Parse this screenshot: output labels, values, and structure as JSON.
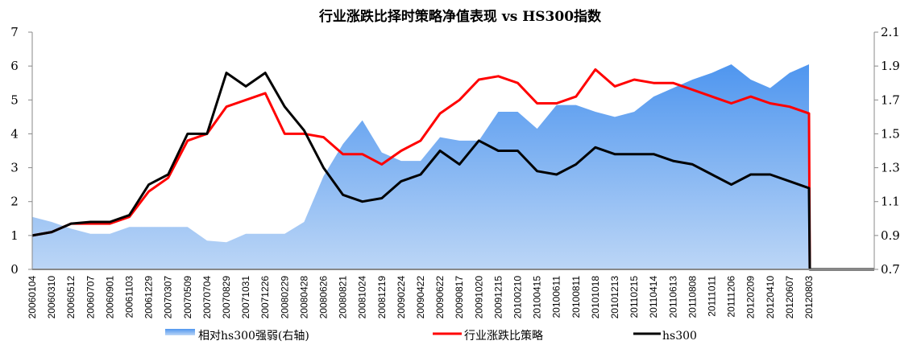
{
  "chart_data": {
    "type": "line",
    "title": "行业涨跌比择时策略净值表现 vs HS300指数",
    "categories": [
      "20060104",
      "20060310",
      "20060512",
      "20060707",
      "20060901",
      "20061103",
      "20061229",
      "20070307",
      "20070509",
      "20070704",
      "20070829",
      "20071031",
      "20071226",
      "20080229",
      "20080428",
      "20080626",
      "20080821",
      "20081024",
      "20081219",
      "20090224",
      "20090422",
      "20090622",
      "20090817",
      "20091020",
      "20091215",
      "20100210",
      "20100415",
      "20100611",
      "20100811",
      "20101018",
      "20101213",
      "20110215",
      "20110414",
      "20110613",
      "20110808",
      "20111011",
      "20111206",
      "20120209",
      "20120410",
      "20120607",
      "20120803"
    ],
    "left_axis": {
      "ylim": [
        0,
        7
      ],
      "ticks": [
        "0",
        "1",
        "2",
        "3",
        "4",
        "5",
        "6",
        "7"
      ]
    },
    "right_axis": {
      "ylim": [
        0.7,
        2.1
      ],
      "ticks": [
        "0.7",
        "0.9",
        "1.1",
        "1.3",
        "1.5",
        "1.7",
        "1.9",
        "2.1"
      ]
    },
    "series": [
      {
        "name": "相对hs300强弱(右轴)",
        "type": "area",
        "axis": "right",
        "color": "#5b9ff0",
        "values": [
          1.01,
          0.98,
          0.94,
          0.91,
          0.91,
          0.95,
          0.95,
          0.95,
          0.95,
          0.87,
          0.86,
          0.91,
          0.91,
          0.91,
          0.98,
          1.25,
          1.44,
          1.58,
          1.39,
          1.34,
          1.34,
          1.48,
          1.46,
          1.46,
          1.63,
          1.63,
          1.53,
          1.67,
          1.67,
          1.63,
          1.6,
          1.63,
          1.72,
          1.77,
          1.82,
          1.86,
          1.91,
          1.82,
          1.77,
          1.86,
          1.91
        ]
      },
      {
        "name": "行业涨跌比策略",
        "type": "line",
        "axis": "left",
        "color": "#ff0000",
        "values": [
          1.0,
          1.1,
          1.35,
          1.35,
          1.35,
          1.55,
          2.3,
          2.7,
          3.8,
          4.0,
          4.8,
          5.0,
          5.2,
          4.0,
          4.0,
          3.9,
          3.4,
          3.4,
          3.1,
          3.5,
          3.8,
          4.6,
          5.0,
          5.6,
          5.7,
          5.5,
          4.9,
          4.9,
          5.1,
          5.9,
          5.4,
          5.6,
          5.5,
          5.5,
          5.3,
          5.1,
          4.9,
          5.1,
          4.9,
          4.8,
          4.6
        ]
      },
      {
        "name": "hs300",
        "type": "line",
        "axis": "left",
        "color": "#000000",
        "values": [
          1.0,
          1.1,
          1.35,
          1.4,
          1.4,
          1.6,
          2.5,
          2.8,
          4.0,
          4.0,
          5.8,
          5.4,
          5.8,
          4.8,
          4.1,
          3.0,
          2.2,
          2.0,
          2.1,
          2.6,
          2.8,
          3.5,
          3.1,
          3.8,
          3.5,
          3.5,
          2.9,
          2.8,
          3.1,
          3.6,
          3.4,
          3.4,
          3.4,
          3.2,
          3.1,
          2.8,
          2.5,
          2.8,
          2.8,
          2.6,
          2.4
        ]
      }
    ],
    "legend": "bottom",
    "grid": false
  }
}
